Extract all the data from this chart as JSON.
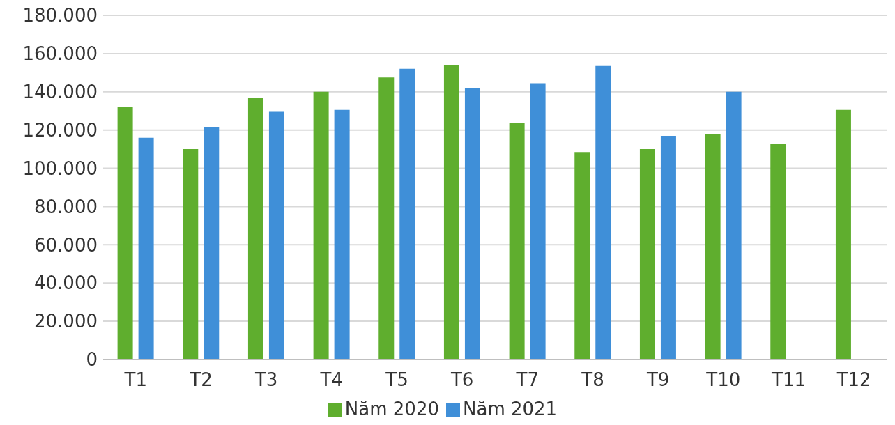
{
  "chart_data": {
    "type": "bar",
    "categories": [
      "T1",
      "T2",
      "T3",
      "T4",
      "T5",
      "T6",
      "T7",
      "T8",
      "T9",
      "T10",
      "T11",
      "T12"
    ],
    "series": [
      {
        "name": "Năm 2020",
        "color": "#5fae2e",
        "values": [
          132000,
          110000,
          137000,
          140000,
          147500,
          154000,
          123500,
          108500,
          110000,
          118000,
          113000,
          130500
        ]
      },
      {
        "name": "Năm 2021",
        "color": "#3f8fd8",
        "values": [
          116000,
          121500,
          129500,
          130500,
          152000,
          142000,
          144500,
          153500,
          117000,
          140000,
          null,
          null
        ]
      }
    ],
    "ylim": [
      0,
      180000
    ],
    "yticks": [
      0,
      {
        "value": 20000,
        "label": "20.000"
      },
      {
        "value": 40000,
        "label": "40.000"
      },
      {
        "value": 60000,
        "label": "60.000"
      },
      {
        "value": 80000,
        "label": "80.000"
      },
      {
        "value": 100000,
        "label": "100.000"
      },
      {
        "value": 120000,
        "label": "120.000"
      },
      {
        "value": 140000,
        "label": "140.000"
      },
      {
        "value": 160000,
        "label": "160.000"
      },
      {
        "value": 180000,
        "label": "180.000"
      }
    ],
    "grid": "y",
    "legend": "bottom"
  }
}
